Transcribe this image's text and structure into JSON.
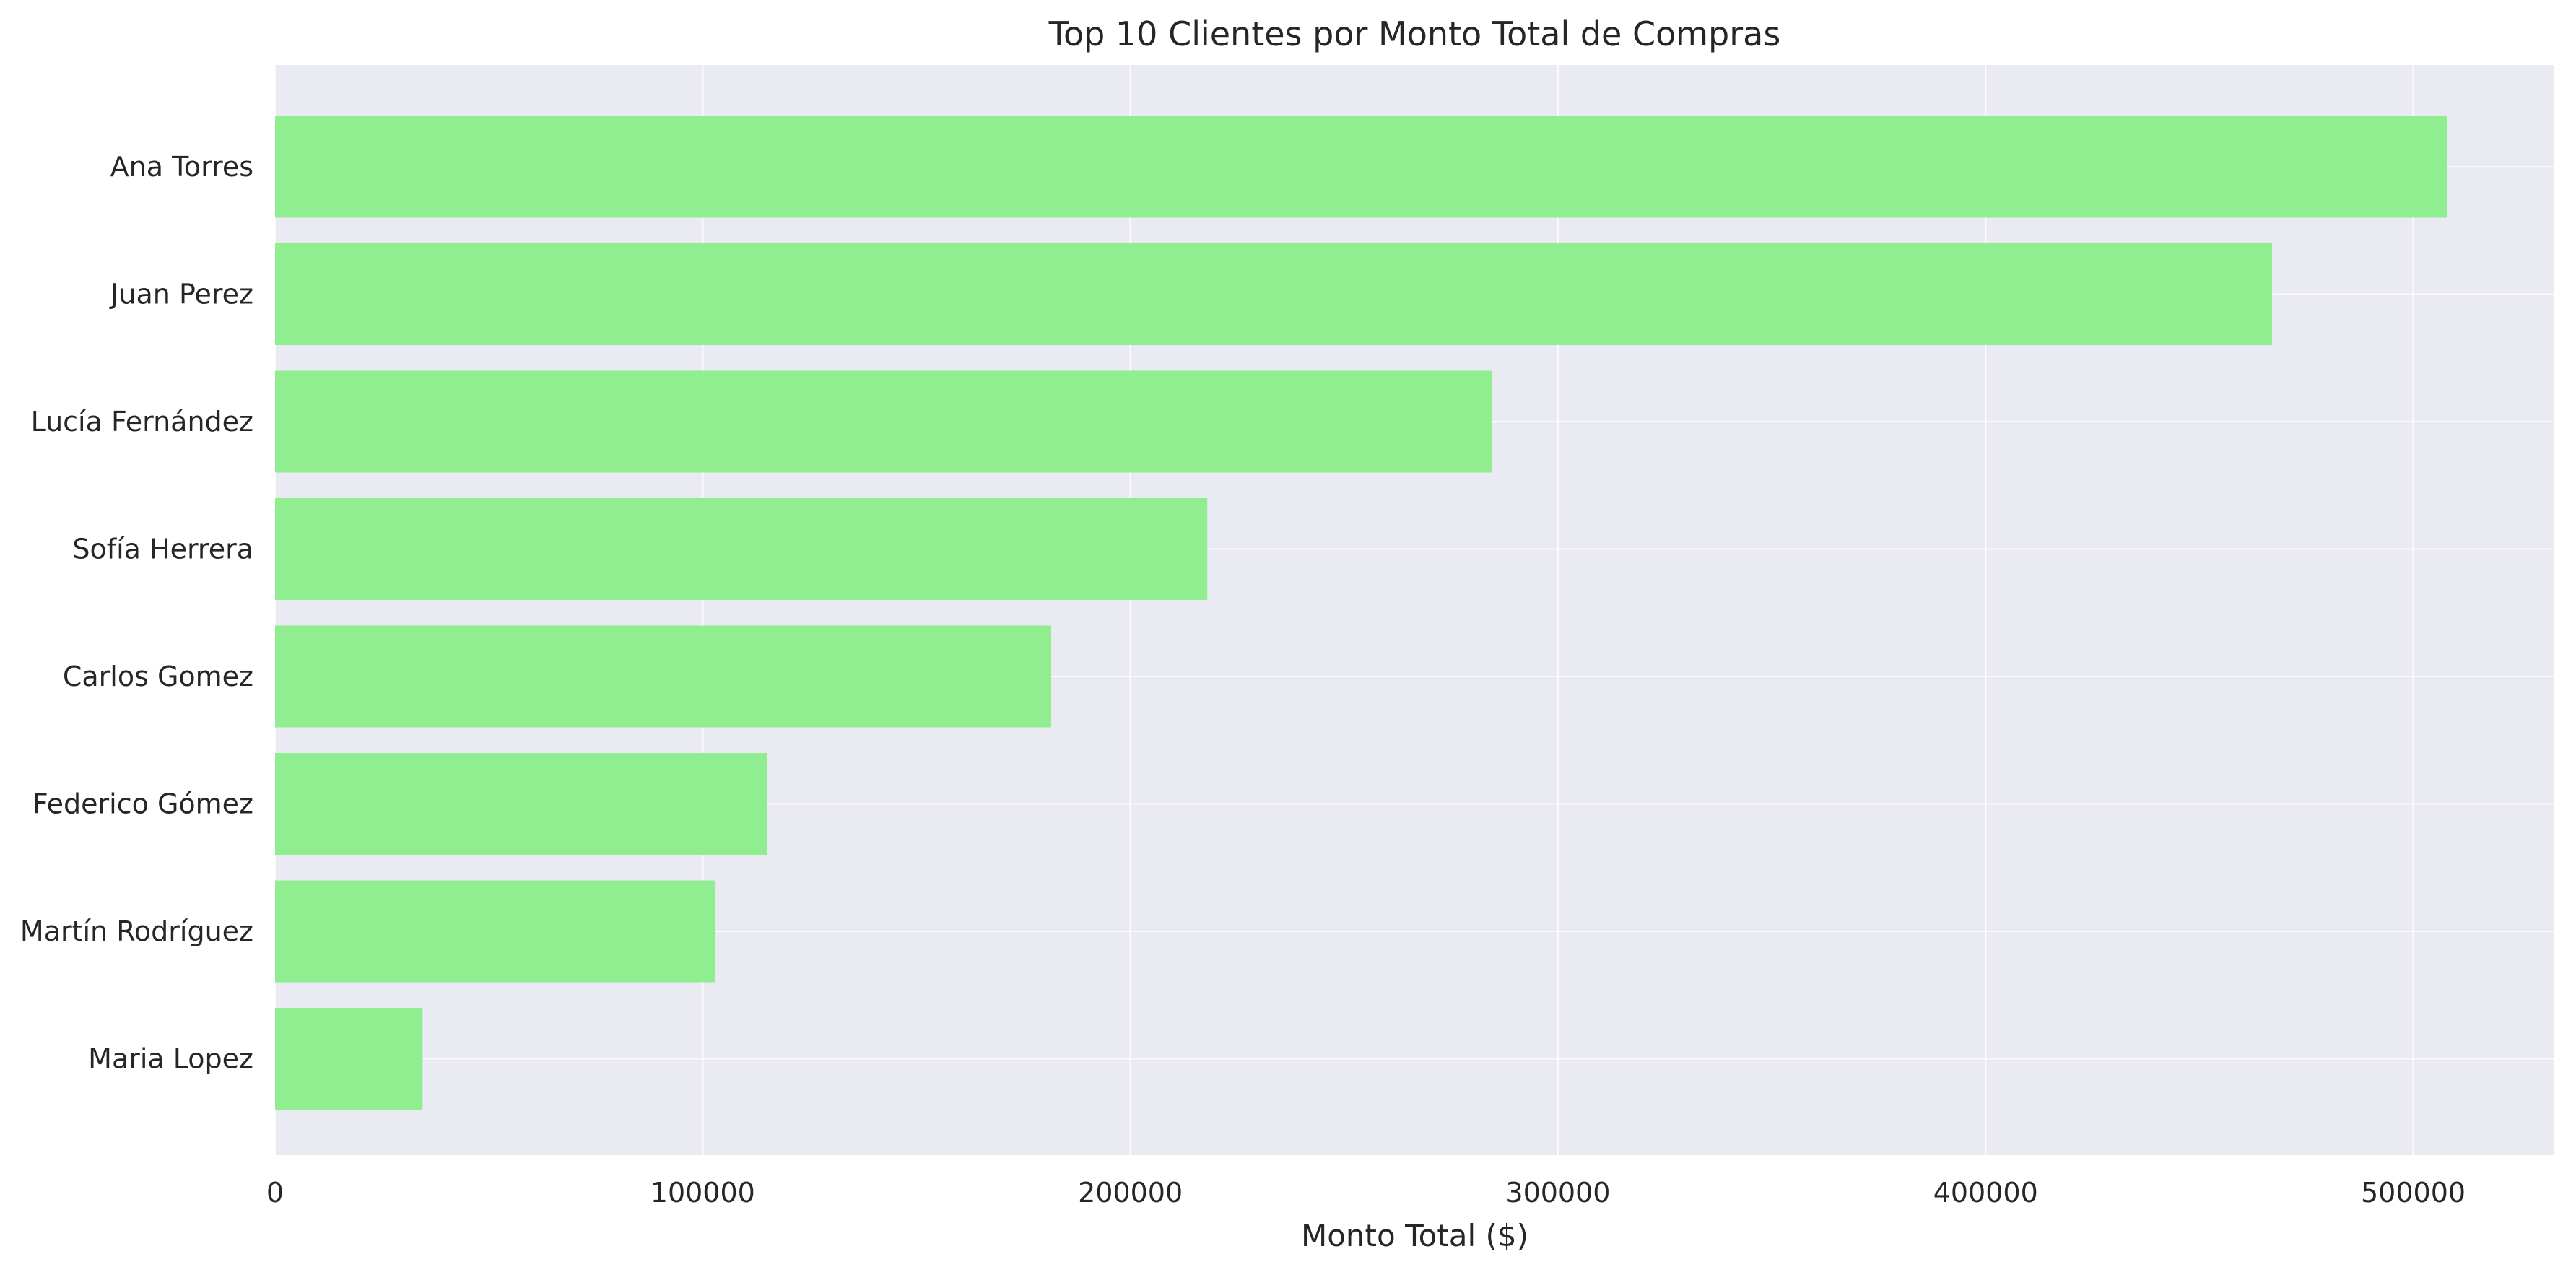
{
  "chart_data": {
    "type": "bar",
    "orientation": "horizontal",
    "title": "Top 10 Clientes por Monto Total de Compras",
    "xlabel": "Monto Total ($)",
    "ylabel": "",
    "categories": [
      "Ana Torres",
      "Juan Perez",
      "Lucía Fernández",
      "Sofía Herrera",
      "Carlos Gomez",
      "Federico Gómez",
      "Martín Rodríguez",
      "Maria Lopez"
    ],
    "values": [
      508000,
      467000,
      284500,
      218000,
      181500,
      115000,
      103000,
      34500
    ],
    "xlim": [
      0,
      533000
    ],
    "xticks": [
      0,
      100000,
      200000,
      300000,
      400000,
      500000
    ],
    "xtick_labels": [
      "0",
      "100000",
      "200000",
      "300000",
      "400000",
      "500000"
    ],
    "grid": true,
    "bar_color": "#90ee90",
    "background_color": "#eaeaf2"
  }
}
